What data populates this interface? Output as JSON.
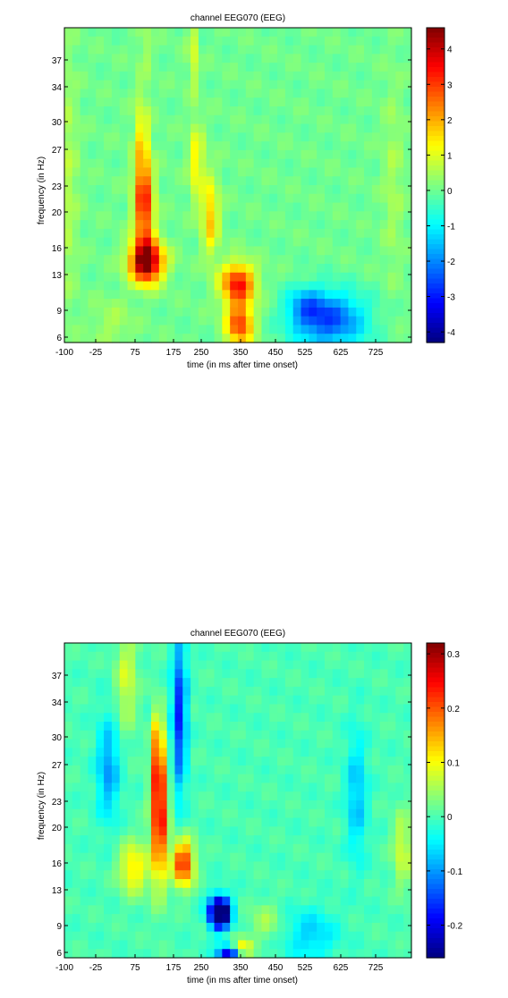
{
  "chart_data": [
    {
      "type": "heatmap",
      "title": "channel EEG070 (EEG)",
      "xlabel": "time (in ms after time onset)",
      "ylabel": "frequency (in Hz)",
      "xlim": [
        -100,
        850
      ],
      "ylim": [
        6,
        41
      ],
      "x_ticks": [
        "-100",
        "-25",
        "75",
        "175",
        "250",
        "350",
        "450",
        "525",
        "625",
        "725"
      ],
      "y_ticks": [
        "37",
        "34",
        "30",
        "27",
        "23",
        "20",
        "16",
        "13",
        "9",
        "6"
      ],
      "colorbar_ticks": [
        "4",
        "3",
        "2",
        "1",
        "0",
        "-1",
        "-2",
        "-3",
        "-4"
      ],
      "clim": [
        -4.3,
        4.6
      ],
      "grid": false,
      "colormap": "jet",
      "blobs": [
        {
          "t": 125,
          "f": 15,
          "st": 32,
          "sf": 1.6,
          "a": 4.8
        },
        {
          "t": 118,
          "f": 21,
          "st": 18,
          "sf": 3.5,
          "a": 3.2
        },
        {
          "t": 112,
          "f": 28,
          "st": 14,
          "sf": 4,
          "a": 1.4
        },
        {
          "t": 122,
          "f": 39,
          "st": 12,
          "sf": 2,
          "a": 0.5
        },
        {
          "t": 250,
          "f": 38,
          "st": 8,
          "sf": 3,
          "a": 1.2
        },
        {
          "t": 262,
          "f": 26,
          "st": 14,
          "sf": 3,
          "a": 1.4
        },
        {
          "t": 300,
          "f": 20,
          "st": 16,
          "sf": 3,
          "a": 1.8
        },
        {
          "t": 375,
          "f": 12.5,
          "st": 32,
          "sf": 1.6,
          "a": 3.4
        },
        {
          "t": 380,
          "f": 8,
          "st": 26,
          "sf": 1.6,
          "a": 3.0
        },
        {
          "t": 625,
          "f": 8.5,
          "st": 70,
          "sf": 2.2,
          "a": -2.5
        },
        {
          "t": 560,
          "f": 10,
          "st": 35,
          "sf": 1.5,
          "a": -1.2
        },
        {
          "t": -90,
          "f": 24,
          "st": 20,
          "sf": 10,
          "a": 0.6
        },
        {
          "t": 800,
          "f": 24,
          "st": 20,
          "sf": 8,
          "a": 0.5
        },
        {
          "t": 30,
          "f": 8,
          "st": 40,
          "sf": 2,
          "a": 0.5
        }
      ]
    },
    {
      "type": "heatmap",
      "title": "channel EEG070 (EEG)",
      "xlabel": "time (in ms after time onset)",
      "ylabel": "frequency (in Hz)",
      "xlim": [
        -100,
        850
      ],
      "ylim": [
        6,
        41
      ],
      "x_ticks": [
        "-100",
        "-25",
        "75",
        "175",
        "250",
        "350",
        "450",
        "525",
        "625",
        "725"
      ],
      "y_ticks": [
        "37",
        "34",
        "30",
        "27",
        "23",
        "20",
        "16",
        "13",
        "9",
        "6"
      ],
      "colorbar_ticks": [
        "0.3",
        "0.2",
        "0.1",
        "0",
        "-0.1",
        "-0.2"
      ],
      "clim": [
        -0.26,
        0.32
      ],
      "grid": false,
      "colormap": "jet",
      "blobs": [
        {
          "t": 160,
          "f": 22,
          "st": 15,
          "sf": 5,
          "a": 0.28
        },
        {
          "t": 155,
          "f": 29,
          "st": 10,
          "sf": 3,
          "a": 0.14
        },
        {
          "t": 225,
          "f": 16.5,
          "st": 20,
          "sf": 1.8,
          "a": 0.24
        },
        {
          "t": 90,
          "f": 16,
          "st": 28,
          "sf": 2,
          "a": 0.12
        },
        {
          "t": 325,
          "f": 11,
          "st": 20,
          "sf": 1.2,
          "a": -0.4
        },
        {
          "t": 350,
          "f": 6.3,
          "st": 22,
          "sf": 0.8,
          "a": -0.22
        },
        {
          "t": 385,
          "f": 7.2,
          "st": 20,
          "sf": 0.8,
          "a": 0.12
        },
        {
          "t": 215,
          "f": 33,
          "st": 14,
          "sf": 6,
          "a": -0.17
        },
        {
          "t": 20,
          "f": 27,
          "st": 22,
          "sf": 4,
          "a": -0.1
        },
        {
          "t": 700,
          "f": 24,
          "st": 20,
          "sf": 5,
          "a": -0.08
        },
        {
          "t": 575,
          "f": 8.5,
          "st": 50,
          "sf": 2,
          "a": -0.07
        },
        {
          "t": 825,
          "f": 18,
          "st": 18,
          "sf": 3,
          "a": 0.08
        },
        {
          "t": 70,
          "f": 37,
          "st": 20,
          "sf": 4,
          "a": 0.08
        },
        {
          "t": 450,
          "f": 10,
          "st": 30,
          "sf": 1.5,
          "a": 0.05
        }
      ]
    }
  ]
}
